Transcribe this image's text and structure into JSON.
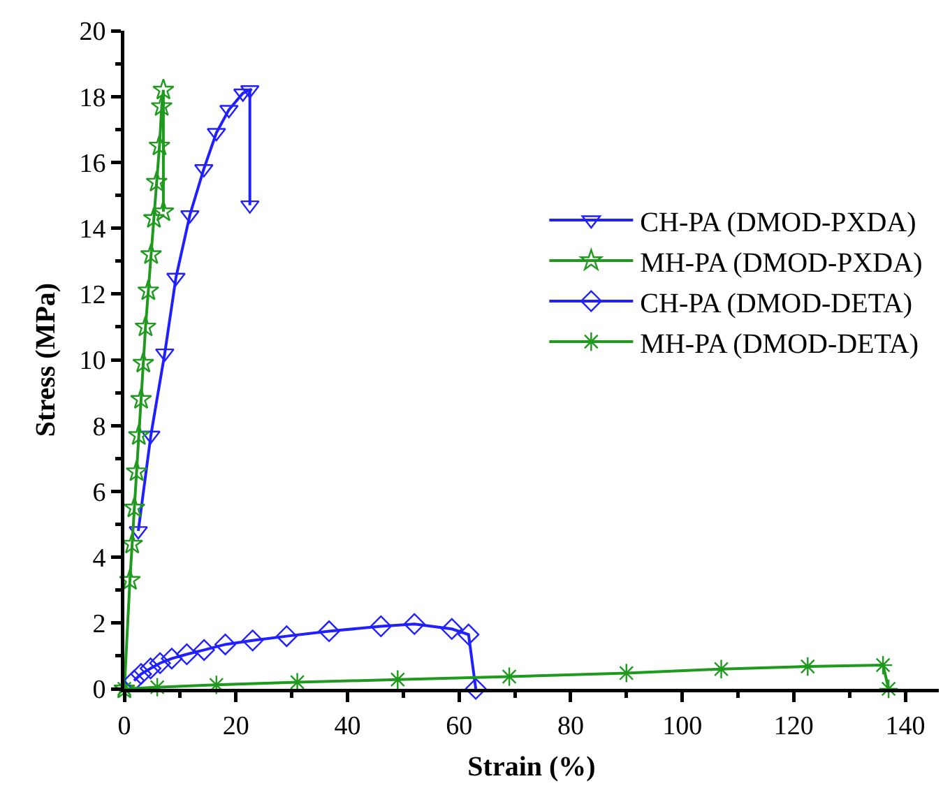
{
  "chart_data": {
    "type": "line",
    "xlabel": "Strain (%)",
    "ylabel": "Stress (MPa)",
    "xlim": [
      0,
      146
    ],
    "xticks": [
      0,
      {
        "value": 10,
        "label": null
      },
      20,
      {
        "value": 30,
        "label": null
      },
      40,
      {
        "value": 50,
        "label": null
      },
      60,
      {
        "value": 70,
        "label": null
      },
      80,
      {
        "value": 90,
        "label": null
      },
      100,
      {
        "value": 110,
        "label": null
      },
      120,
      {
        "value": 130,
        "label": null
      },
      140
    ],
    "ylim": [
      0,
      20
    ],
    "yticks": [
      0,
      {
        "value": 1,
        "label": null
      },
      2,
      {
        "value": 3,
        "label": null
      },
      4,
      {
        "value": 5,
        "label": null
      },
      6,
      {
        "value": 7,
        "label": null
      },
      8,
      {
        "value": 9,
        "label": null
      },
      10,
      {
        "value": 11,
        "label": null
      },
      12,
      {
        "value": 13,
        "label": null
      },
      14,
      {
        "value": 15,
        "label": null
      },
      16,
      {
        "value": 17,
        "label": null
      },
      18,
      {
        "value": 19,
        "label": null
      },
      20
    ],
    "grid": false,
    "legend": "right",
    "line_style": "solid",
    "series": [
      {
        "name": "CH-PA (DMOD-PXDA)",
        "color": "#1f1fff",
        "marker": "triangle",
        "x": [
          2.5,
          4.75,
          7.25,
          9.25,
          11.75,
          14.25,
          16.5,
          18.75,
          21.25,
          22.5,
          22.5
        ],
        "values": [
          4.8,
          7.7,
          10.2,
          12.5,
          14.4,
          15.8,
          16.9,
          17.6,
          18.1,
          18.2,
          14.7
        ]
      },
      {
        "name": "MH-PA (DMOD-PXDA)",
        "color": "#1f9a1f",
        "marker": "star",
        "x": [
          0,
          1,
          1.4,
          1.8,
          2.2,
          2.6,
          3,
          3.4,
          3.8,
          4.3,
          4.8,
          5.3,
          5.8,
          6.3,
          6.7,
          7,
          7
        ],
        "values": [
          0,
          3.3,
          4.4,
          5.5,
          6.6,
          7.7,
          8.8,
          9.9,
          11,
          12.1,
          13.2,
          14.3,
          15.4,
          16.5,
          17.7,
          18.2,
          14.5
        ]
      },
      {
        "name": "CH-PA (DMOD-DETA)",
        "color": "#1f1fff",
        "marker": "diamond",
        "x": [
          1.75,
          3,
          4.7,
          6.4,
          8.5,
          11.2,
          14.3,
          18.1,
          23,
          29.1,
          36.7,
          46,
          52,
          58.7,
          61.7,
          63
        ],
        "values": [
          0.25,
          0.45,
          0.62,
          0.78,
          0.92,
          1.05,
          1.18,
          1.35,
          1.47,
          1.6,
          1.75,
          1.9,
          1.97,
          1.82,
          1.65,
          0
        ]
      },
      {
        "name": "MH-PA (DMOD-DETA)",
        "color": "#1f9a1f",
        "marker": "cross",
        "x": [
          0,
          5.9,
          16.5,
          31,
          49,
          69,
          90,
          107,
          122.5,
          136,
          137
        ],
        "values": [
          0,
          0.05,
          0.12,
          0.2,
          0.28,
          0.37,
          0.48,
          0.6,
          0.68,
          0.72,
          0
        ]
      }
    ]
  }
}
